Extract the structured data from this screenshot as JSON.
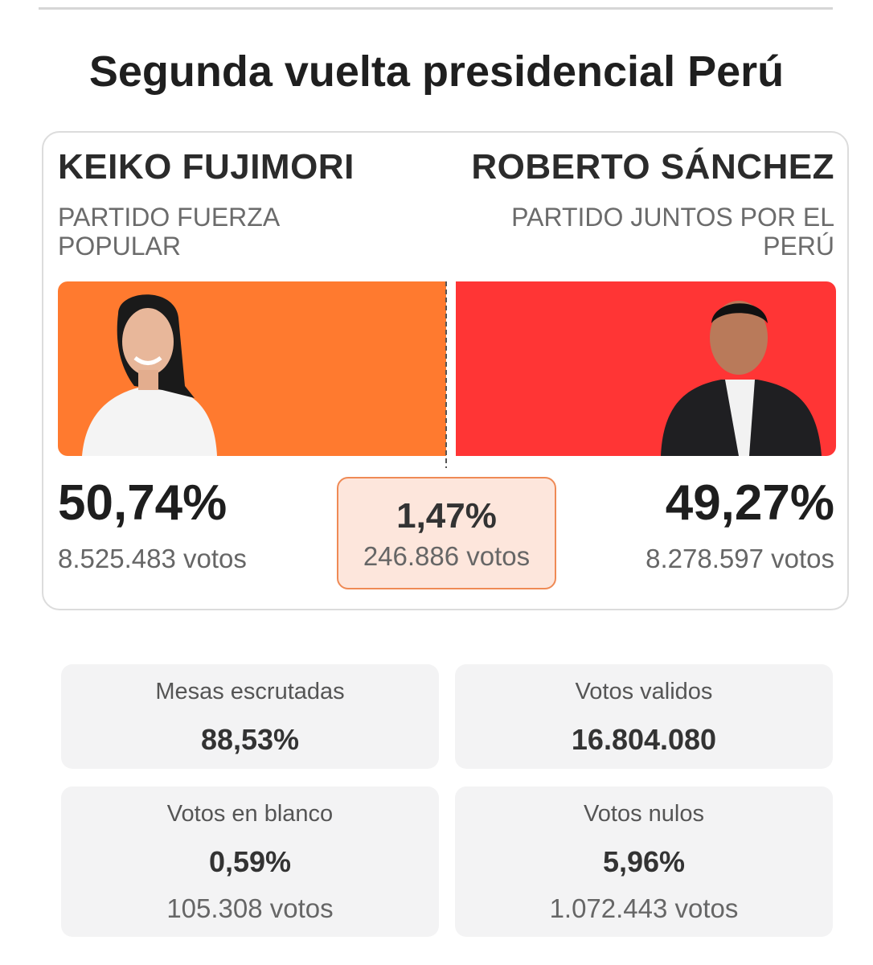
{
  "title": "Segunda vuelta presidencial Perú",
  "candidates": [
    {
      "name": "KEIKO FUJIMORI",
      "party": "PARTIDO FUERZA POPULAR",
      "percent": "50,74%",
      "votes": "8.525.483 votos"
    },
    {
      "name": "ROBERTO SÁNCHEZ",
      "party": "PARTIDO JUNTOS POR EL PERÚ",
      "percent": "49,27%",
      "votes": "8.278.597 votos"
    }
  ],
  "difference": {
    "percent": "1,47%",
    "votes": "246.886 votos"
  },
  "stats": [
    {
      "label": "Mesas escrutadas",
      "value": "88,53%"
    },
    {
      "label": "Votos validos",
      "value": "16.804.080"
    },
    {
      "label": "Votos en blanco",
      "value": "0,59%",
      "votes": "105.308 votos"
    },
    {
      "label": "Votos nulos",
      "value": "5,96%",
      "votes": "1.072.443 votos"
    }
  ]
}
